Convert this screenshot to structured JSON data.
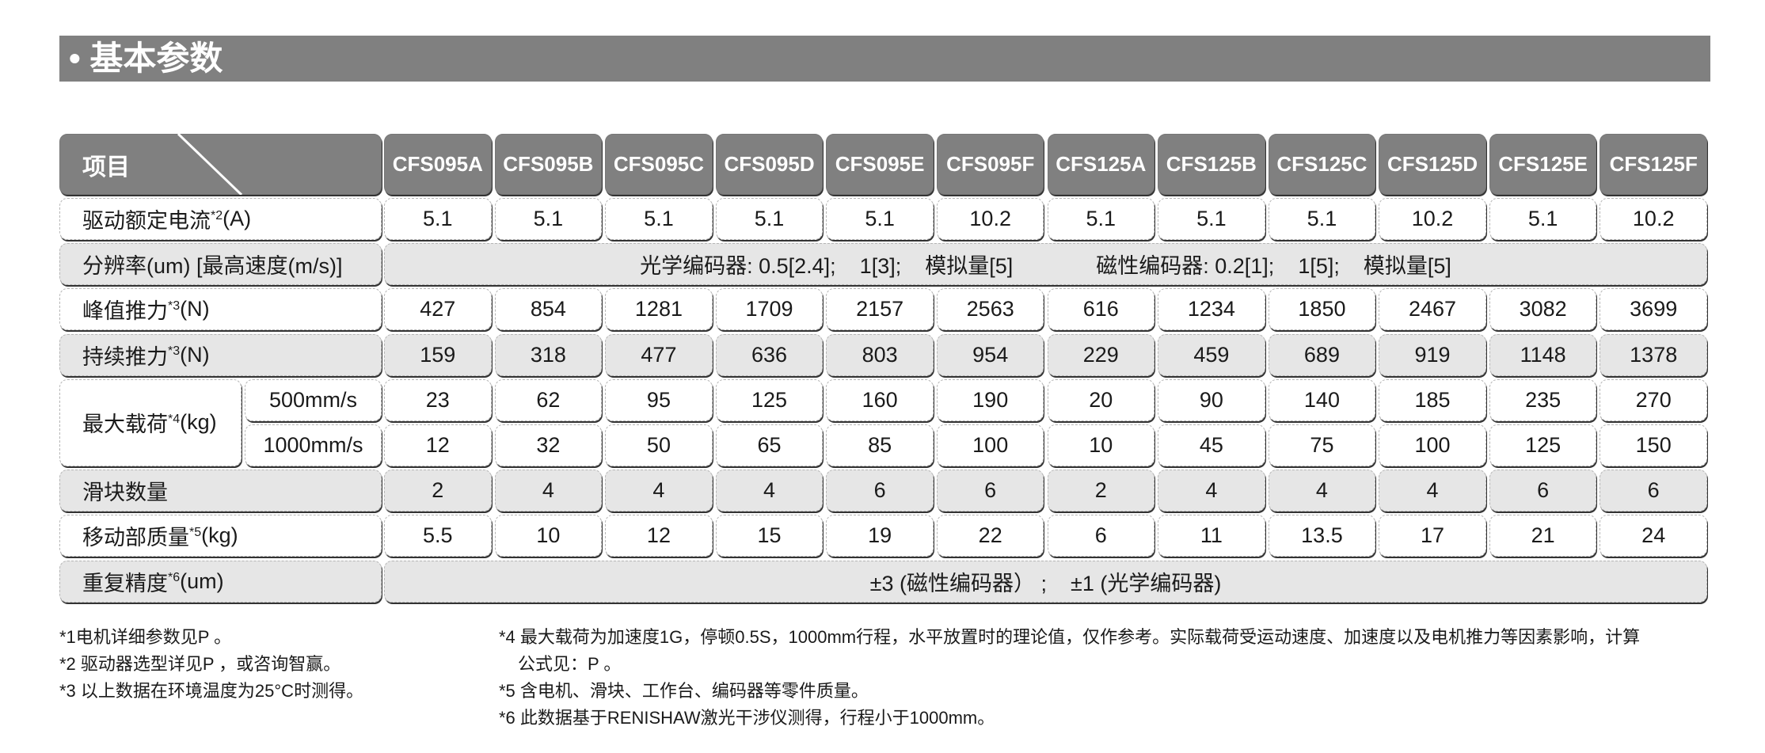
{
  "title": "• 基本参数",
  "header": {
    "item_label": "项目",
    "models": [
      "CFS095A",
      "CFS095B",
      "CFS095C",
      "CFS095D",
      "CFS095E",
      "CFS095F",
      "CFS125A",
      "CFS125B",
      "CFS125C",
      "CFS125D",
      "CFS125E",
      "CFS125F"
    ]
  },
  "rows": [
    {
      "label": "驱动额定电流",
      "sup": "*2",
      "unit": "(A)",
      "style": "white",
      "values": [
        "5.1",
        "5.1",
        "5.1",
        "5.1",
        "5.1",
        "10.2",
        "5.1",
        "5.1",
        "5.1",
        "10.2",
        "5.1",
        "10.2"
      ]
    },
    {
      "label": "分辨率(um)  [最高速度(m/s)]",
      "sup": "",
      "unit": "",
      "style": "gray",
      "merged": "光学编码器: 0.5[2.4];    1[3];    模拟量[5]              磁性编码器: 0.2[1];    1[5];    模拟量[5]"
    },
    {
      "label": "峰值推力",
      "sup": "*3",
      "unit": "(N)",
      "style": "white",
      "values": [
        "427",
        "854",
        "1281",
        "1709",
        "2157",
        "2563",
        "616",
        "1234",
        "1850",
        "2467",
        "3082",
        "3699"
      ]
    },
    {
      "label": "持续推力",
      "sup": "*3",
      "unit": "(N)",
      "style": "gray",
      "values": [
        "159",
        "318",
        "477",
        "636",
        "803",
        "954",
        "229",
        "459",
        "689",
        "919",
        "1148",
        "1378"
      ]
    },
    {
      "label": "最大载荷",
      "sup": "*4",
      "unit": "(kg)",
      "style": "white",
      "sub": [
        {
          "label": "500mm/s",
          "values": [
            "23",
            "62",
            "95",
            "125",
            "160",
            "190",
            "20",
            "90",
            "140",
            "185",
            "235",
            "270"
          ]
        },
        {
          "label": "1000mm/s",
          "values": [
            "12",
            "32",
            "50",
            "65",
            "85",
            "100",
            "10",
            "45",
            "75",
            "100",
            "125",
            "150"
          ]
        }
      ]
    },
    {
      "label": "滑块数量",
      "sup": "",
      "unit": "",
      "style": "gray",
      "values": [
        "2",
        "4",
        "4",
        "4",
        "6",
        "6",
        "2",
        "4",
        "4",
        "4",
        "6",
        "6"
      ]
    },
    {
      "label": "移动部质量",
      "sup": "*5",
      "unit": "(kg)",
      "style": "white",
      "values": [
        "5.5",
        "10",
        "12",
        "15",
        "19",
        "22",
        "6",
        "11",
        "13.5",
        "17",
        "21",
        "24"
      ]
    },
    {
      "label": "重复精度",
      "sup": "*6",
      "unit": "(um)",
      "style": "gray",
      "merged": "±3 (磁性编码器） ;    ±1 (光学编码器)"
    }
  ],
  "notes_left": [
    "*1电机详细参数见P 。",
    "*2 驱动器选型详见P  ，或咨询智赢。",
    "*3 以上数据在环境温度为25°C时测得。"
  ],
  "notes_right": [
    "*4 最大载荷为加速度1G，停顿0.5S，1000mm行程，水平放置时的理论值，仅作参考。实际载荷受运动速度、加速度以及电机推力等因素影响，计算",
    "公式见：P 。",
    "*5 含电机、滑块、工作台、编码器等零件质量。",
    "*6 此数据基于RENISHAW激光干涉仪测得，行程小于1000mm。"
  ],
  "colors": {
    "header": "#808080",
    "gray_row": "#e6e6e6",
    "white_row": "#ffffff"
  }
}
